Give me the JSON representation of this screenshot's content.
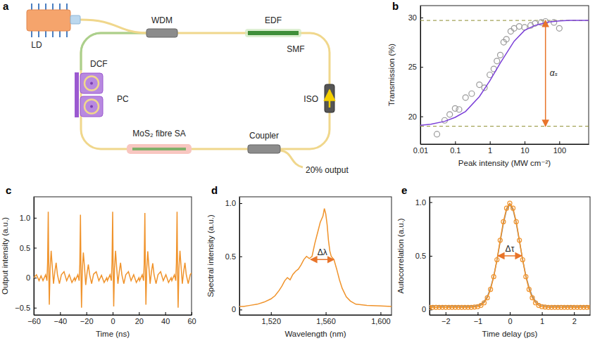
{
  "diagram": {
    "panel": "a",
    "labels": {
      "ld": "LD",
      "wdm": "WDM",
      "edf": "EDF",
      "dcf": "DCF",
      "smf": "SMF",
      "pc": "PC",
      "iso": "ISO",
      "sa": "MoS₂ fibre SA",
      "coupler": "Coupler",
      "output": "20% output"
    }
  },
  "chart_data": [
    {
      "panel": "b",
      "type": "scatter",
      "x_label": "Peak intensity (MW cm⁻²)",
      "y_label": "Transmission (%)",
      "log": "x",
      "grid": false,
      "xlim": [
        0.01,
        700
      ],
      "xticks": [
        0.01,
        0.1,
        1,
        10,
        100
      ],
      "ylim": [
        17.2,
        31.2
      ],
      "yticks": [
        20,
        25,
        30
      ],
      "series": [
        {
          "type": "scatter",
          "marker": "circle",
          "color": "#9a9a9a",
          "x": [
            0.03,
            0.05,
            0.07,
            0.1,
            0.13,
            0.2,
            0.3,
            0.5,
            0.7,
            1,
            1.3,
            1.6,
            2,
            2.5,
            3,
            4,
            5,
            7,
            10,
            15,
            20,
            30,
            40,
            70,
            100
          ],
          "values": [
            18.2,
            19.6,
            20.2,
            20.8,
            20.7,
            21.9,
            22.3,
            23.2,
            22.9,
            24.2,
            24.8,
            25.6,
            26.2,
            27.5,
            27.8,
            28.6,
            28.9,
            29.1,
            29.0,
            29.2,
            29.4,
            29.5,
            29.6,
            29.5,
            28.9
          ]
        },
        {
          "type": "line",
          "color": "#7b3fd8",
          "x": [
            0.01,
            0.02,
            0.05,
            0.1,
            0.2,
            0.5,
            1,
            2,
            5,
            10,
            20,
            50,
            100,
            200,
            700
          ],
          "values": [
            19.1,
            19.2,
            19.5,
            19.9,
            20.5,
            22.0,
            23.6,
            25.4,
            27.6,
            28.7,
            29.2,
            29.55,
            29.65,
            29.7,
            29.7
          ]
        }
      ],
      "reference_lines": {
        "values": [
          29.7,
          19.0
        ],
        "color": "#8c8c2e",
        "line_style": "dashed"
      },
      "annotations": [
        {
          "text": "αₛ",
          "x": 40,
          "color": "#e8742a"
        }
      ]
    },
    {
      "panel": "c",
      "type": "line",
      "x_label": "Time (ns)",
      "y_label": "Output intensity (a.u.)",
      "grid": false,
      "xlim": [
        -60,
        60
      ],
      "xticks": [
        {
          "value": -60,
          "label": "−60"
        },
        {
          "value": -40,
          "label": "−40"
        },
        {
          "value": -20,
          "label": "−20"
        },
        0,
        20,
        40,
        60
      ],
      "ylim": [
        -0.62,
        1.35
      ],
      "yticks": [
        {
          "value": -0.5,
          "label": "−0.5"
        },
        0,
        0.5,
        {
          "value": 1,
          "label": "1.0"
        }
      ],
      "series": [
        {
          "type": "line",
          "color": "#f0932b",
          "x": [
            -60,
            -58,
            -56,
            -54.5,
            -53,
            -51,
            -50,
            -49.5,
            -49,
            -48.6,
            -48.2,
            -47.6,
            -46.8,
            -46,
            -45,
            -44,
            -43,
            -42,
            -40.5,
            -39,
            -37,
            -35,
            -33,
            -31,
            -29,
            -28.5,
            -26.5,
            -25.5,
            -25,
            -24.5,
            -24.1,
            -23.7,
            -23.1,
            -22.3,
            -21.5,
            -20.5,
            -19.5,
            -18.5,
            -17.5,
            -16,
            -14.5,
            -12.5,
            -10.5,
            -8.5,
            -6.5,
            -4.5,
            -4,
            -2,
            -1,
            -0.5,
            0,
            0.4,
            0.8,
            1.4,
            2.2,
            3,
            4,
            5,
            6,
            7,
            8.5,
            10,
            12,
            14,
            16,
            18,
            20,
            20.5,
            22.5,
            23.5,
            24,
            24.5,
            24.9,
            25.3,
            25.9,
            26.7,
            27.5,
            28.5,
            29.5,
            30.5,
            31.5,
            33,
            34.5,
            36.5,
            38.5,
            40.5,
            42.5,
            44.5,
            45,
            47,
            48,
            48.5,
            49,
            49.4,
            49.8,
            50.4,
            51.2,
            52,
            53,
            54,
            55,
            56,
            57.5,
            59,
            60
          ],
          "values": [
            0,
            0.05,
            -0.05,
            0.03,
            -0.05,
            0.05,
            -0.05,
            0.25,
            1.1,
            0.1,
            -0.45,
            0.15,
            0.45,
            0.2,
            -0.1,
            0.1,
            0.25,
            0.05,
            -0.1,
            0.05,
            0.1,
            -0.05,
            0.05,
            -0.08,
            0.0,
            -0.05,
            0.05,
            -0.05,
            0.22,
            1.05,
            0.08,
            -0.5,
            0.12,
            0.42,
            0.2,
            -0.12,
            0.08,
            0.22,
            0.05,
            -0.1,
            0.06,
            0.1,
            -0.05,
            0.04,
            -0.08,
            0.0,
            -0.05,
            0.05,
            -0.05,
            0.25,
            1.1,
            0.1,
            -0.48,
            0.15,
            0.45,
            0.18,
            -0.1,
            0.1,
            0.25,
            0.05,
            -0.1,
            0.05,
            0.1,
            -0.05,
            0.05,
            -0.08,
            0.0,
            -0.05,
            0.05,
            -0.05,
            0.24,
            1.08,
            0.1,
            -0.45,
            0.14,
            0.44,
            0.2,
            -0.1,
            0.1,
            0.24,
            0.05,
            -0.1,
            0.05,
            0.1,
            -0.05,
            0.05,
            -0.08,
            0.0,
            -0.05,
            0.05,
            -0.05,
            0.25,
            1.1,
            0.1,
            -0.5,
            0.15,
            0.45,
            0.2,
            -0.1,
            0.1,
            0.25,
            0.05,
            -0.1,
            0.05,
            0.08
          ]
        }
      ]
    },
    {
      "panel": "d",
      "type": "line",
      "x_label": "Wavelength (nm)",
      "y_label": "Spectral intensity (a.u.)",
      "grid": false,
      "xlim": [
        1497,
        1608
      ],
      "xticks": [
        {
          "value": 1520,
          "label": "1,520"
        },
        {
          "value": 1560,
          "label": "1,560"
        },
        {
          "value": 1600,
          "label": "1,600"
        }
      ],
      "ylim": [
        -0.05,
        1.06
      ],
      "yticks": [
        0,
        0.5,
        {
          "value": 1,
          "label": "1.0"
        }
      ],
      "series": [
        {
          "type": "line",
          "color": "#f0932b",
          "x": [
            1497,
            1500,
            1505,
            1510,
            1515,
            1520,
            1523,
            1526,
            1528,
            1530,
            1532,
            1534,
            1536,
            1538,
            1540,
            1542,
            1544,
            1546,
            1548,
            1550,
            1552,
            1554,
            1556,
            1557,
            1558,
            1559,
            1560,
            1561,
            1562,
            1563,
            1564,
            1566,
            1568,
            1570,
            1572,
            1575,
            1578,
            1582,
            1590,
            1600,
            1608
          ],
          "values": [
            0.03,
            0.03,
            0.04,
            0.05,
            0.07,
            0.1,
            0.13,
            0.18,
            0.22,
            0.27,
            0.3,
            0.28,
            0.33,
            0.36,
            0.38,
            0.42,
            0.47,
            0.5,
            0.48,
            0.5,
            0.62,
            0.72,
            0.82,
            0.85,
            0.88,
            0.95,
            0.9,
            0.8,
            0.65,
            0.55,
            0.5,
            0.47,
            0.38,
            0.28,
            0.2,
            0.12,
            0.08,
            0.05,
            0.04,
            0.035,
            0.03
          ]
        }
      ],
      "annotations": [
        {
          "text": "Δλ",
          "x": [
            1549,
            1566
          ],
          "y": 0.47,
          "color": "#e8742a"
        }
      ]
    },
    {
      "panel": "e",
      "type": "line",
      "x_label": "Time delay (ps)",
      "y_label": "Autocorrelation (a.u.)",
      "grid": false,
      "xlim": [
        -2.5,
        2.5
      ],
      "xticks": [
        {
          "value": -2,
          "label": "−2"
        },
        {
          "value": -1,
          "label": "−1"
        },
        0,
        1,
        2
      ],
      "ylim": [
        -0.05,
        1.05
      ],
      "yticks": [
        0,
        0.5,
        {
          "value": 1,
          "label": "1.0"
        }
      ],
      "series": [
        {
          "type": "line",
          "color": "#8a8a8a",
          "x": [
            -2.5,
            -2.4,
            -2.3,
            -2.2,
            -2.1,
            -2.0,
            -1.9,
            -1.8,
            -1.7,
            -1.6,
            -1.5,
            -1.4,
            -1.3,
            -1.2,
            -1.1,
            -1.0,
            -0.9,
            -0.8,
            -0.7,
            -0.6,
            -0.5,
            -0.4,
            -0.3,
            -0.2,
            -0.1,
            0,
            0.1,
            0.2,
            0.3,
            0.4,
            0.5,
            0.6,
            0.7,
            0.8,
            0.9,
            1.0,
            1.1,
            1.2,
            1.3,
            1.4,
            1.5,
            1.6,
            1.7,
            1.8,
            1.9,
            2.0,
            2.1,
            2.2,
            2.3,
            2.4,
            2.5
          ],
          "values": [
            0.035,
            0.03,
            0.038,
            0.032,
            0.03,
            0.036,
            0.028,
            0.033,
            0.03,
            0.034,
            0.029,
            0.031,
            0.03,
            0.032,
            0.034,
            0.04,
            0.05,
            0.075,
            0.12,
            0.2,
            0.31,
            0.46,
            0.63,
            0.8,
            0.93,
            0.975,
            0.93,
            0.805,
            0.635,
            0.465,
            0.315,
            0.205,
            0.125,
            0.078,
            0.052,
            0.041,
            0.035,
            0.031,
            0.028,
            0.033,
            0.03,
            0.036,
            0.029,
            0.032,
            0.034,
            0.03,
            0.027,
            0.033,
            0.03,
            0.035,
            0.031
          ]
        },
        {
          "type": "line",
          "marker": "circle",
          "color": "#f0932b",
          "x": [
            -2.5,
            -2.4,
            -2.3,
            -2.2,
            -2.1,
            -2.0,
            -1.9,
            -1.8,
            -1.7,
            -1.6,
            -1.5,
            -1.4,
            -1.3,
            -1.2,
            -1.1,
            -1.0,
            -0.9,
            -0.8,
            -0.7,
            -0.6,
            -0.5,
            -0.4,
            -0.3,
            -0.2,
            -0.1,
            0,
            0.1,
            0.2,
            0.3,
            0.4,
            0.5,
            0.6,
            0.7,
            0.8,
            0.9,
            1.0,
            1.1,
            1.2,
            1.3,
            1.4,
            1.5,
            1.6,
            1.7,
            1.8,
            1.9,
            2.0,
            2.1,
            2.2,
            2.3,
            2.4,
            2.5
          ],
          "values": [
            0.02,
            0.02,
            0.02,
            0.02,
            0.02,
            0.02,
            0.02,
            0.02,
            0.02,
            0.02,
            0.02,
            0.02,
            0.02,
            0.02,
            0.023,
            0.027,
            0.038,
            0.063,
            0.109,
            0.188,
            0.306,
            0.464,
            0.645,
            0.818,
            0.944,
            0.99,
            0.944,
            0.818,
            0.645,
            0.464,
            0.306,
            0.188,
            0.109,
            0.063,
            0.038,
            0.027,
            0.023,
            0.02,
            0.02,
            0.02,
            0.02,
            0.02,
            0.02,
            0.02,
            0.02,
            0.02,
            0.02,
            0.02,
            0.02,
            0.02,
            0.02
          ]
        }
      ],
      "annotations": [
        {
          "text": "Δτ",
          "x": [
            -0.37,
            0.37
          ],
          "y": 0.5,
          "color": "#e8742a"
        }
      ]
    }
  ]
}
